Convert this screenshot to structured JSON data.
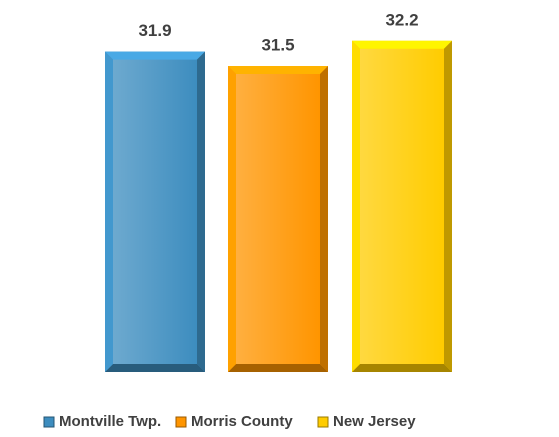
{
  "chart_data": {
    "type": "bar",
    "series": [
      {
        "name": "Montville Twp.",
        "color": "#3d8dbf",
        "values": [
          31.9
        ]
      },
      {
        "name": "Morris County",
        "color": "#ff9500",
        "values": [
          31.5
        ]
      },
      {
        "name": "New Jersey",
        "color": "#ffcc00",
        "values": [
          32.2
        ]
      }
    ],
    "ylim": [
      23,
      32.5
    ]
  }
}
